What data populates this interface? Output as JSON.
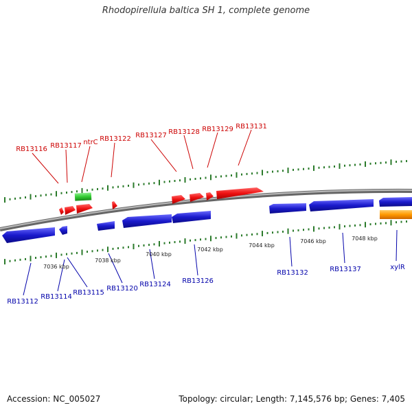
{
  "title": "Rhodopirellula baltica SH 1, complete genome",
  "footer": {
    "accession": "Accession: NC_005027",
    "summary": "Topology: circular; Length: 7,145,576 bp; Genes: 7,405"
  },
  "colors": {
    "forward_gene": "#ee1111",
    "reverse_gene": "#1a1acc",
    "rna_gene": "#33cc33",
    "other_gene": "#ff9900",
    "forward_label": "#cc0000",
    "reverse_label": "#0000aa",
    "tick": "#2a7a2a",
    "backbone": "#888888"
  },
  "scale_labels": [
    "7036 kbp",
    "7038 kbp",
    "7040 kbp",
    "7042 kbp",
    "7044 kbp",
    "7046 kbp",
    "7048 kbp"
  ],
  "forward_labels": [
    "RB13116",
    "RB13117",
    "ntrC",
    "RB13122",
    "RB13127",
    "RB13128",
    "RB13129",
    "RB13131"
  ],
  "reverse_labels": [
    "RB13112",
    "RB13114",
    "RB13115",
    "RB13120",
    "RB13124",
    "RB13126",
    "RB13132",
    "RB13137",
    "xylR"
  ]
}
